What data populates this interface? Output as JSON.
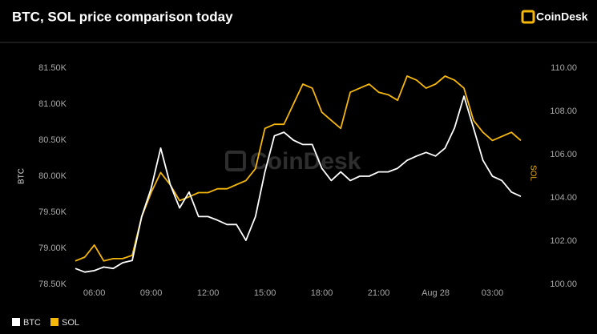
{
  "brand": "CoinDesk",
  "chart_data": {
    "type": "line",
    "title": "BTC, SOL price comparison today",
    "y_label": "BTC",
    "y2_label": "SOL",
    "x": [
      "05:00",
      "05:30",
      "06:00",
      "06:30",
      "07:00",
      "07:30",
      "08:00",
      "08:30",
      "09:00",
      "09:30",
      "10:00",
      "10:30",
      "11:00",
      "11:30",
      "12:00",
      "12:30",
      "13:00",
      "13:30",
      "14:00",
      "14:30",
      "15:00",
      "15:30",
      "16:00",
      "16:30",
      "17:00",
      "17:30",
      "18:00",
      "18:30",
      "19:00",
      "19:30",
      "20:00",
      "20:30",
      "21:00",
      "21:30",
      "22:00",
      "22:30",
      "23:00",
      "23:30",
      "00:00",
      "00:30",
      "01:00",
      "01:30",
      "02:00",
      "02:30",
      "03:00",
      "03:30",
      "04:00",
      "04:30"
    ],
    "xticks": [
      "06:00",
      "09:00",
      "12:00",
      "15:00",
      "18:00",
      "21:00",
      {
        "value": "00:00",
        "label": "Aug 28"
      },
      "03:00"
    ],
    "ylim": [
      78500,
      81500
    ],
    "yticks": [
      {
        "value": 78500,
        "label": "78.50K"
      },
      {
        "value": 79000,
        "label": "79.00K"
      },
      {
        "value": 79500,
        "label": "79.50K"
      },
      {
        "value": 80000,
        "label": "80.00K"
      },
      {
        "value": 80500,
        "label": "80.50K"
      },
      {
        "value": 81000,
        "label": "81.00K"
      },
      {
        "value": 81500,
        "label": "81.50K"
      }
    ],
    "y2lim": [
      100,
      110
    ],
    "y2ticks": [
      {
        "value": 100,
        "label": "100.00"
      },
      {
        "value": 102,
        "label": "102.00"
      },
      {
        "value": 104,
        "label": "104.00"
      },
      {
        "value": 106,
        "label": "106.00"
      },
      {
        "value": 108,
        "label": "108.00"
      },
      {
        "value": 110,
        "label": "110.00"
      }
    ],
    "grid": false,
    "legend": "bottom-left",
    "series": [
      {
        "name": "BTC",
        "color": "#ffffff",
        "values": [
          78720,
          78670,
          78690,
          78740,
          78720,
          78800,
          78830,
          79440,
          79830,
          80390,
          79890,
          79560,
          79780,
          79440,
          79440,
          79390,
          79330,
          79330,
          79110,
          79440,
          80060,
          80560,
          80610,
          80500,
          80440,
          80440,
          80110,
          79940,
          80060,
          79940,
          80000,
          80000,
          80060,
          80060,
          80110,
          80220,
          80280,
          80330,
          80280,
          80390,
          80670,
          81110,
          80670,
          80220,
          80000,
          79940,
          79780,
          79720
        ]
      },
      {
        "name": "SOL",
        "color": "#f5b70a",
        "axis": "y2",
        "values": [
          101.08,
          101.26,
          101.82,
          101.08,
          101.19,
          101.19,
          101.34,
          103.12,
          104.24,
          105.17,
          104.61,
          103.87,
          104.05,
          104.24,
          104.24,
          104.42,
          104.42,
          104.61,
          104.8,
          105.35,
          107.21,
          107.4,
          107.4,
          108.33,
          109.26,
          109.07,
          107.96,
          107.58,
          107.21,
          108.88,
          109.07,
          109.26,
          108.88,
          108.77,
          108.51,
          109.63,
          109.44,
          109.07,
          109.26,
          109.63,
          109.44,
          109.07,
          107.58,
          107.03,
          106.65,
          106.84,
          107.03,
          106.65
        ]
      }
    ]
  }
}
